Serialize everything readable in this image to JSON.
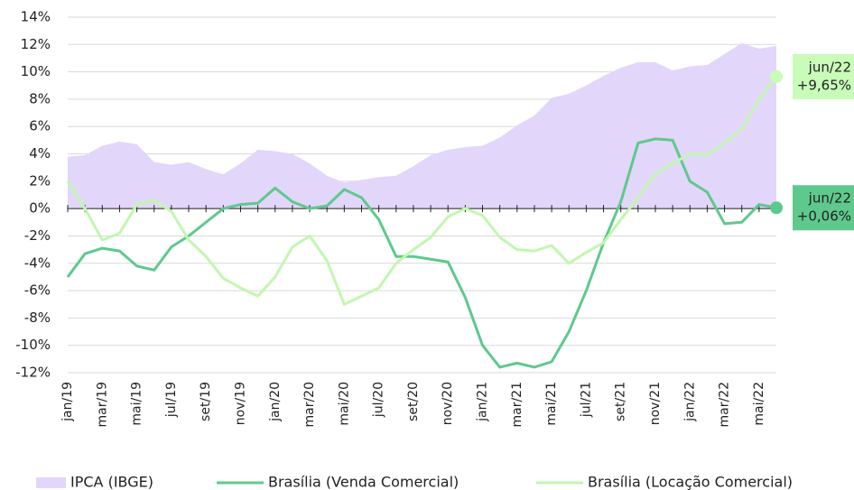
{
  "chart_data": {
    "type": "line",
    "categories": [
      "jan/19",
      null,
      "mar/19",
      null,
      "mai/19",
      null,
      "jul/19",
      null,
      "set/19",
      null,
      "nov/19",
      null,
      "jan/20",
      null,
      "mar/20",
      null,
      "mai/20",
      null,
      "jul/20",
      null,
      "set/20",
      null,
      "nov/20",
      null,
      "jan/21",
      null,
      "mar/21",
      null,
      "mai/21",
      null,
      "jul/21",
      null,
      "set/21",
      null,
      "nov/21",
      null,
      "jan/22",
      null,
      "mar/22",
      null,
      "mai/22",
      null
    ],
    "series": [
      {
        "name": "IPCA (IBGE)",
        "kind": "area",
        "color": "#e3d6fb",
        "values": [
          3.8,
          3.9,
          4.6,
          4.9,
          4.7,
          3.4,
          3.2,
          3.4,
          2.9,
          2.5,
          3.3,
          4.3,
          4.2,
          4.0,
          3.3,
          2.4,
          1.9,
          2.1,
          2.3,
          2.4,
          3.1,
          3.9,
          4.3,
          4.5,
          4.6,
          5.2,
          6.1,
          6.8,
          8.1,
          8.4,
          9.0,
          9.7,
          10.3,
          10.7,
          10.7,
          10.1,
          10.4,
          10.5,
          11.3,
          12.1,
          11.7,
          11.9
        ]
      },
      {
        "name": "Brasília (Venda Comercial)",
        "kind": "line",
        "color": "#5ec98c",
        "end_fill": "#5ec98c",
        "values": [
          -5.0,
          -3.3,
          -2.9,
          -3.1,
          -4.2,
          -4.5,
          -2.8,
          -2.0,
          -1.0,
          0.0,
          0.3,
          0.4,
          1.5,
          0.5,
          0.0,
          0.2,
          1.4,
          0.8,
          -0.8,
          -3.5,
          -3.5,
          -3.7,
          -3.9,
          -6.5,
          -10.0,
          -11.6,
          -11.3,
          -11.6,
          -11.2,
          -9.0,
          -6.0,
          -2.5,
          0.5,
          4.8,
          5.1,
          5.0,
          2.0,
          1.2,
          -1.1,
          -1.0,
          0.3,
          0.06
        ],
        "end_label": [
          "jun/22",
          "+0,06%"
        ]
      },
      {
        "name": "Brasília (Locação Comercial)",
        "kind": "line",
        "color": "#c2f7b0",
        "end_fill": "#c9fbb9",
        "values": [
          2.0,
          0.0,
          -2.3,
          -1.8,
          0.3,
          0.6,
          -0.2,
          -2.3,
          -3.5,
          -5.1,
          -5.8,
          -6.4,
          -5.0,
          -2.8,
          -2.0,
          -3.8,
          -7.0,
          -6.4,
          -5.8,
          -4.0,
          -3.0,
          -2.1,
          -0.6,
          0.0,
          -0.5,
          -2.1,
          -3.0,
          -3.1,
          -2.7,
          -4.0,
          -3.2,
          -2.5,
          -0.8,
          0.8,
          2.5,
          3.3,
          4.0,
          3.9,
          4.8,
          5.8,
          8.0,
          9.65
        ],
        "end_label": [
          "jun/22",
          "+9,65%"
        ]
      }
    ],
    "ylim": [
      -12,
      14
    ],
    "yticks": [
      {
        "value": -12,
        "label": "-12%"
      },
      {
        "value": -10,
        "label": "-10%"
      },
      {
        "value": -8,
        "label": "-8%"
      },
      {
        "value": -6,
        "label": "-6%"
      },
      {
        "value": -4,
        "label": "-4%"
      },
      {
        "value": -2,
        "label": "-2%"
      },
      {
        "value": 0,
        "label": "0%"
      },
      {
        "value": 2,
        "label": "2%"
      },
      {
        "value": 4,
        "label": "4%"
      },
      {
        "value": 6,
        "label": "6%"
      },
      {
        "value": 8,
        "label": "8%"
      },
      {
        "value": 10,
        "label": "10%"
      },
      {
        "value": 12,
        "label": "12%"
      },
      {
        "value": 14,
        "label": "14%"
      }
    ],
    "grid": true,
    "legend": "bottom"
  }
}
